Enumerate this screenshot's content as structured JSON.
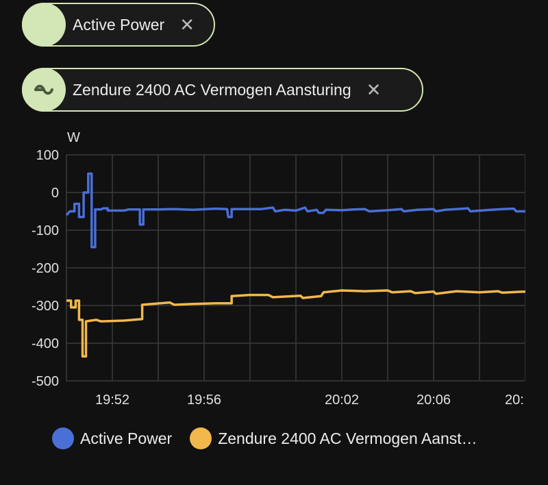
{
  "chips": [
    {
      "label": "Active Power",
      "icon": "blank-avatar",
      "close_icon": "close-icon"
    },
    {
      "label": "Zendure 2400 AC Vermogen Aansturing",
      "icon": "sine-wave-icon",
      "close_icon": "close-icon"
    }
  ],
  "colors": {
    "series1": "#4a6fd6",
    "series2": "#f2b84b",
    "chip_accent": "#d3e6b5",
    "grid": "#3a3a3a"
  },
  "chart_data": {
    "type": "line",
    "title": "",
    "ylabel": "W",
    "xlabel": "",
    "ylim": [
      -500,
      100
    ],
    "yticks": [
      "100",
      "0",
      "-100",
      "-200",
      "-300",
      "-400",
      "-500"
    ],
    "xticks": [
      "19:52",
      "19:56",
      "20:02",
      "20:06",
      "20:"
    ],
    "grid": true,
    "legend_position": "bottom",
    "step": true,
    "x_minutes_start": "19:50",
    "series": [
      {
        "name": "Active Power",
        "color": "#4a6fd6",
        "points": [
          [
            0,
            -60
          ],
          [
            0.15,
            -50
          ],
          [
            0.35,
            -50
          ],
          [
            0.35,
            -30
          ],
          [
            0.55,
            -30
          ],
          [
            0.55,
            -65
          ],
          [
            0.7,
            -65
          ],
          [
            0.75,
            -65
          ],
          [
            0.75,
            0
          ],
          [
            0.95,
            0
          ],
          [
            0.95,
            50
          ],
          [
            1.1,
            50
          ],
          [
            1.1,
            -145
          ],
          [
            1.25,
            -145
          ],
          [
            1.25,
            -45
          ],
          [
            1.5,
            -45
          ],
          [
            1.6,
            -42
          ],
          [
            1.8,
            -42
          ],
          [
            1.8,
            -48
          ],
          [
            2.5,
            -48
          ],
          [
            2.7,
            -45
          ],
          [
            3.2,
            -45
          ],
          [
            3.2,
            -85
          ],
          [
            3.35,
            -85
          ],
          [
            3.35,
            -45
          ],
          [
            4.0,
            -45
          ],
          [
            4.6,
            -44
          ],
          [
            5.5,
            -46
          ],
          [
            6.5,
            -43
          ],
          [
            7.0,
            -44
          ],
          [
            7.05,
            -65
          ],
          [
            7.2,
            -65
          ],
          [
            7.2,
            -44
          ],
          [
            8.5,
            -44
          ],
          [
            9.0,
            -40
          ],
          [
            9.1,
            -50
          ],
          [
            9.5,
            -46
          ],
          [
            10.0,
            -48
          ],
          [
            10.4,
            -40
          ],
          [
            10.5,
            -50
          ],
          [
            10.9,
            -46
          ],
          [
            11.0,
            -54
          ],
          [
            11.2,
            -54
          ],
          [
            11.3,
            -46
          ],
          [
            12.0,
            -47
          ],
          [
            12.5,
            -45
          ],
          [
            13.0,
            -44
          ],
          [
            13.2,
            -50
          ],
          [
            14.0,
            -47
          ],
          [
            14.6,
            -44
          ],
          [
            14.7,
            -50
          ],
          [
            15.3,
            -46
          ],
          [
            16.0,
            -44
          ],
          [
            16.1,
            -50
          ],
          [
            16.5,
            -46
          ],
          [
            17.0,
            -44
          ],
          [
            17.5,
            -42
          ],
          [
            17.6,
            -50
          ],
          [
            18.5,
            -46
          ],
          [
            19.0,
            -44
          ],
          [
            19.5,
            -43
          ],
          [
            19.6,
            -50
          ],
          [
            20.0,
            -50
          ],
          [
            20.1,
            -44
          ],
          [
            20.2,
            -47
          ],
          [
            20.3,
            -43
          ],
          [
            20.4,
            -46
          ]
        ]
      },
      {
        "name": "Zendure 2400 AC Vermogen Aansturing",
        "color": "#f2b84b",
        "points": [
          [
            0,
            -287
          ],
          [
            0.2,
            -287
          ],
          [
            0.2,
            -305
          ],
          [
            0.4,
            -305
          ],
          [
            0.4,
            -287
          ],
          [
            0.55,
            -287
          ],
          [
            0.55,
            -338
          ],
          [
            0.7,
            -338
          ],
          [
            0.7,
            -435
          ],
          [
            0.85,
            -435
          ],
          [
            0.85,
            -342
          ],
          [
            1.3,
            -338
          ],
          [
            1.5,
            -342
          ],
          [
            2.5,
            -340
          ],
          [
            3.3,
            -336
          ],
          [
            3.3,
            -298
          ],
          [
            3.9,
            -295
          ],
          [
            4.5,
            -292
          ],
          [
            4.7,
            -298
          ],
          [
            5.5,
            -296
          ],
          [
            6.5,
            -294
          ],
          [
            7.2,
            -294
          ],
          [
            7.2,
            -275
          ],
          [
            8.0,
            -272
          ],
          [
            8.8,
            -272
          ],
          [
            9.0,
            -278
          ],
          [
            10.2,
            -274
          ],
          [
            10.3,
            -280
          ],
          [
            11.1,
            -275
          ],
          [
            11.2,
            -265
          ],
          [
            12.0,
            -260
          ],
          [
            13.0,
            -262
          ],
          [
            14.0,
            -260
          ],
          [
            14.2,
            -265
          ],
          [
            15.0,
            -262
          ],
          [
            15.2,
            -267
          ],
          [
            16.0,
            -263
          ],
          [
            16.1,
            -269
          ],
          [
            17.0,
            -262
          ],
          [
            18.0,
            -265
          ],
          [
            18.8,
            -262
          ],
          [
            19.0,
            -266
          ],
          [
            20.0,
            -263
          ],
          [
            20.4,
            -260
          ]
        ]
      }
    ]
  },
  "legend": [
    {
      "label": "Active Power",
      "color": "#4a6fd6"
    },
    {
      "label": "Zendure 2400 AC Vermogen Aanst…",
      "color": "#f2b84b"
    }
  ]
}
